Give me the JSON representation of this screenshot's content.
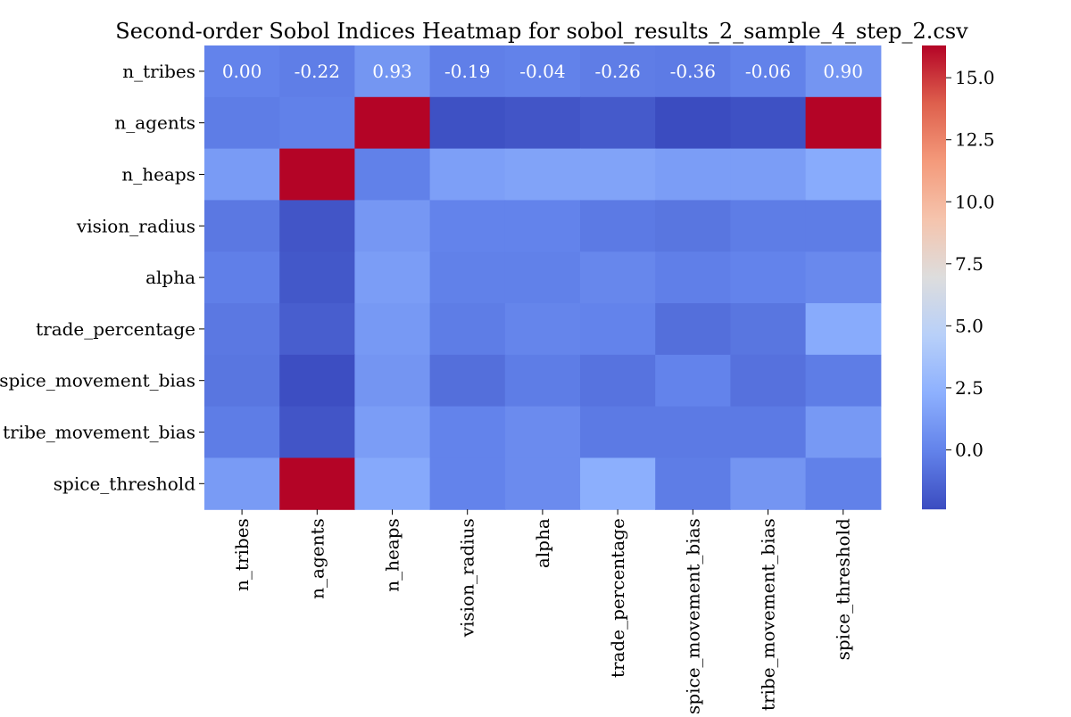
{
  "chart_data": {
    "type": "heatmap",
    "title": "Second-order Sobol Indices Heatmap for sobol_results_2_sample_4_step_2.csv",
    "x_labels": [
      "n_tribes",
      "n_agents",
      "n_heaps",
      "vision_radius",
      "alpha",
      "trade_percentage",
      "spice_movement_bias",
      "tribe_movement_bias",
      "spice_threshold"
    ],
    "y_labels": [
      "n_tribes",
      "n_agents",
      "n_heaps",
      "vision_radius",
      "alpha",
      "trade_percentage",
      "spice_movement_bias",
      "tribe_movement_bias",
      "spice_threshold"
    ],
    "values": [
      [
        0.0,
        -0.22,
        0.93,
        -0.19,
        -0.04,
        -0.26,
        -0.36,
        -0.06,
        0.9
      ],
      [
        -0.3,
        -0.1,
        16.3,
        -2.2,
        -2.0,
        -1.8,
        -2.4,
        -2.2,
        16.3
      ],
      [
        1.2,
        16.3,
        -0.1,
        1.4,
        1.6,
        1.6,
        1.3,
        1.3,
        2.0
      ],
      [
        -0.5,
        -2.0,
        1.0,
        0.0,
        0.0,
        -0.4,
        -0.6,
        -0.3,
        -0.3
      ],
      [
        -0.2,
        -1.9,
        1.3,
        -0.1,
        -0.1,
        0.2,
        -0.2,
        0.0,
        0.3
      ],
      [
        -0.5,
        -1.6,
        1.1,
        -0.3,
        0.1,
        0.0,
        -0.9,
        -0.6,
        2.0
      ],
      [
        -0.6,
        -2.3,
        0.9,
        -0.9,
        -0.3,
        -0.7,
        0.0,
        -0.8,
        -0.3
      ],
      [
        -0.3,
        -2.0,
        1.3,
        0.0,
        0.4,
        -0.4,
        -0.4,
        -0.4,
        1.1
      ],
      [
        1.2,
        16.3,
        1.9,
        0.0,
        0.4,
        2.2,
        -0.3,
        0.9,
        -0.1
      ]
    ],
    "annotations": [
      [
        "0.00",
        "-0.22",
        "0.93",
        "-0.19",
        "-0.04",
        "-0.26",
        "-0.36",
        "-0.06",
        "0.90"
      ],
      [
        "",
        "",
        "",
        "",
        "",
        "",
        "",
        "",
        ""
      ],
      [
        "",
        "",
        "",
        "",
        "",
        "",
        "",
        "",
        ""
      ],
      [
        "",
        "",
        "",
        "",
        "",
        "",
        "",
        "",
        ""
      ],
      [
        "",
        "",
        "",
        "",
        "",
        "",
        "",
        "",
        ""
      ],
      [
        "",
        "",
        "",
        "",
        "",
        "",
        "",
        "",
        ""
      ],
      [
        "",
        "",
        "",
        "",
        "",
        "",
        "",
        "",
        ""
      ],
      [
        "",
        "",
        "",
        "",
        "",
        "",
        "",
        "",
        ""
      ],
      [
        "",
        "",
        "",
        "",
        "",
        "",
        "",
        "",
        ""
      ]
    ],
    "colormap": "coolwarm",
    "vmin": -2.4,
    "vmax": 16.3,
    "colorbar": {
      "ticks": [
        0.0,
        2.5,
        5.0,
        7.5,
        10.0,
        12.5,
        15.0
      ],
      "tick_labels": [
        "0.0",
        "2.5",
        "5.0",
        "7.5",
        "10.0",
        "12.5",
        "15.0"
      ]
    },
    "grid": false
  }
}
